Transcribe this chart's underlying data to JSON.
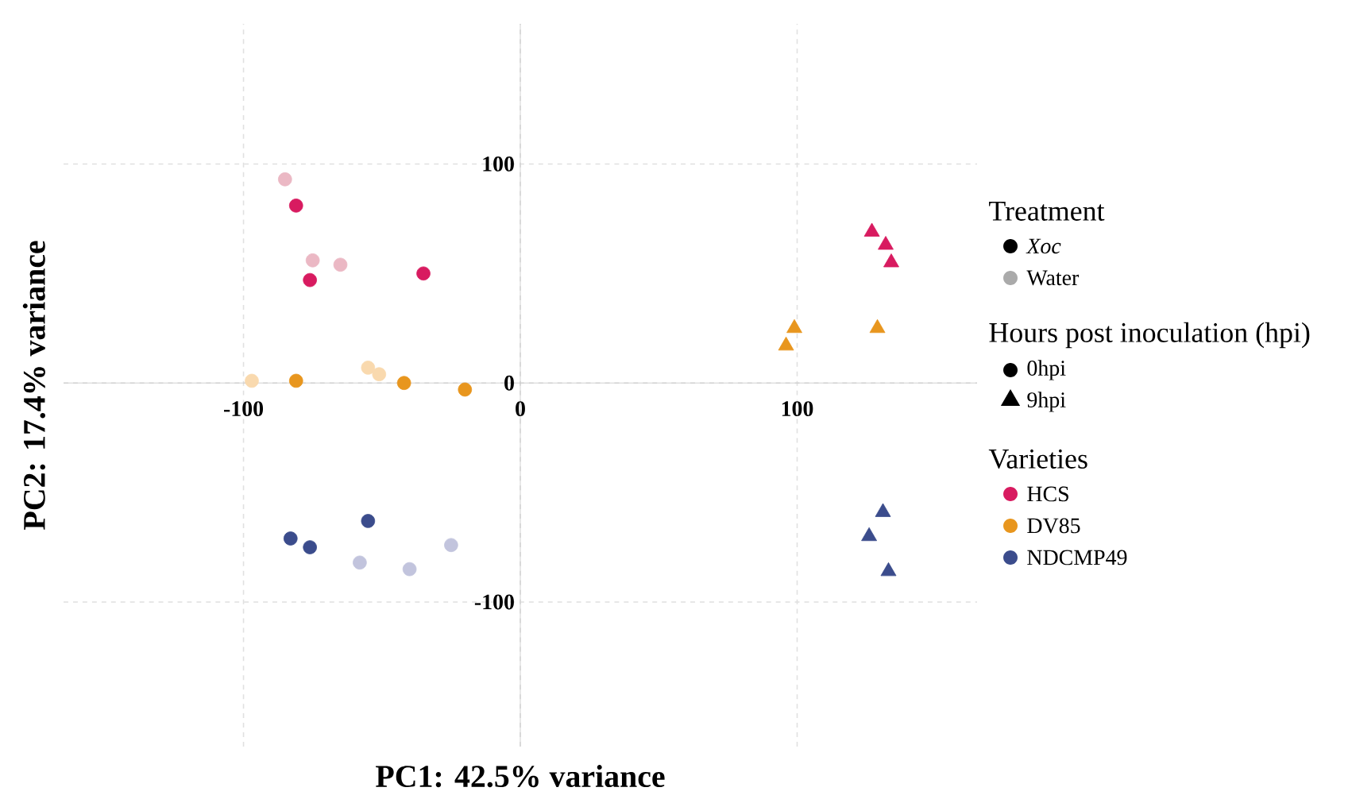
{
  "chart_data": {
    "type": "scatter",
    "xlabel": "PC1: 42.5% variance",
    "ylabel": "PC2: 17.4% variance",
    "xlim": [
      -165,
      165
    ],
    "ylim": [
      -166,
      164
    ],
    "xticks": [
      -100,
      0,
      100
    ],
    "yticks": [
      -100,
      0,
      100
    ],
    "grid": true,
    "legend": "right",
    "series": [
      {
        "x": [
          -81,
          -76,
          -35
        ],
        "values": [
          81,
          47,
          50
        ],
        "color": "#d81b60",
        "marker": "circle"
      },
      {
        "x": [
          -85,
          -75,
          -65
        ],
        "values": [
          93,
          56,
          54
        ],
        "color": "#ebb8c4",
        "marker": "circle"
      },
      {
        "x": [
          -81,
          -42,
          -20
        ],
        "values": [
          1,
          0,
          -3
        ],
        "color": "#e8961e",
        "marker": "circle"
      },
      {
        "x": [
          -97,
          -55,
          -51
        ],
        "values": [
          1,
          7,
          4
        ],
        "color": "#f9d9ae",
        "marker": "circle"
      },
      {
        "x": [
          -83,
          -76,
          -55
        ],
        "values": [
          -71,
          -75,
          -63
        ],
        "color": "#3b4c8c",
        "marker": "circle"
      },
      {
        "x": [
          -58,
          -40,
          -25
        ],
        "values": [
          -82,
          -85,
          -74
        ],
        "color": "#c2c4dd",
        "marker": "circle"
      },
      {
        "x": [
          127,
          132,
          134
        ],
        "values": [
          69,
          63,
          55
        ],
        "color": "#d81b60",
        "marker": "triangle"
      },
      {
        "x": [
          99,
          96,
          129
        ],
        "values": [
          25,
          17,
          25
        ],
        "color": "#e8961e",
        "marker": "triangle"
      },
      {
        "x": [
          131,
          126,
          133
        ],
        "values": [
          -59,
          -70,
          -86
        ],
        "color": "#3b4c8c",
        "marker": "triangle"
      },
      {
        "name": "Treatment"
      },
      {
        "name": "*Xoc*",
        "color": "#000000",
        "marker": "circle"
      },
      {
        "name": "Water",
        "color": "#aaaaaa",
        "marker": "circle"
      },
      {
        "name": "Hours post inoculation (hpi)"
      },
      {
        "name": "0hpi",
        "color": "#000000",
        "marker": "circle"
      },
      {
        "name": "9hpi",
        "color": "#000000",
        "marker": "triangle"
      },
      {
        "name": "Varieties"
      },
      {
        "name": "HCS",
        "color": "#d81b60",
        "marker": "circle"
      },
      {
        "name": "DV85",
        "color": "#e8961e",
        "marker": "circle"
      },
      {
        "name": "NDCMP49",
        "color": "#3b4c8c",
        "marker": "circle"
      }
    ]
  }
}
